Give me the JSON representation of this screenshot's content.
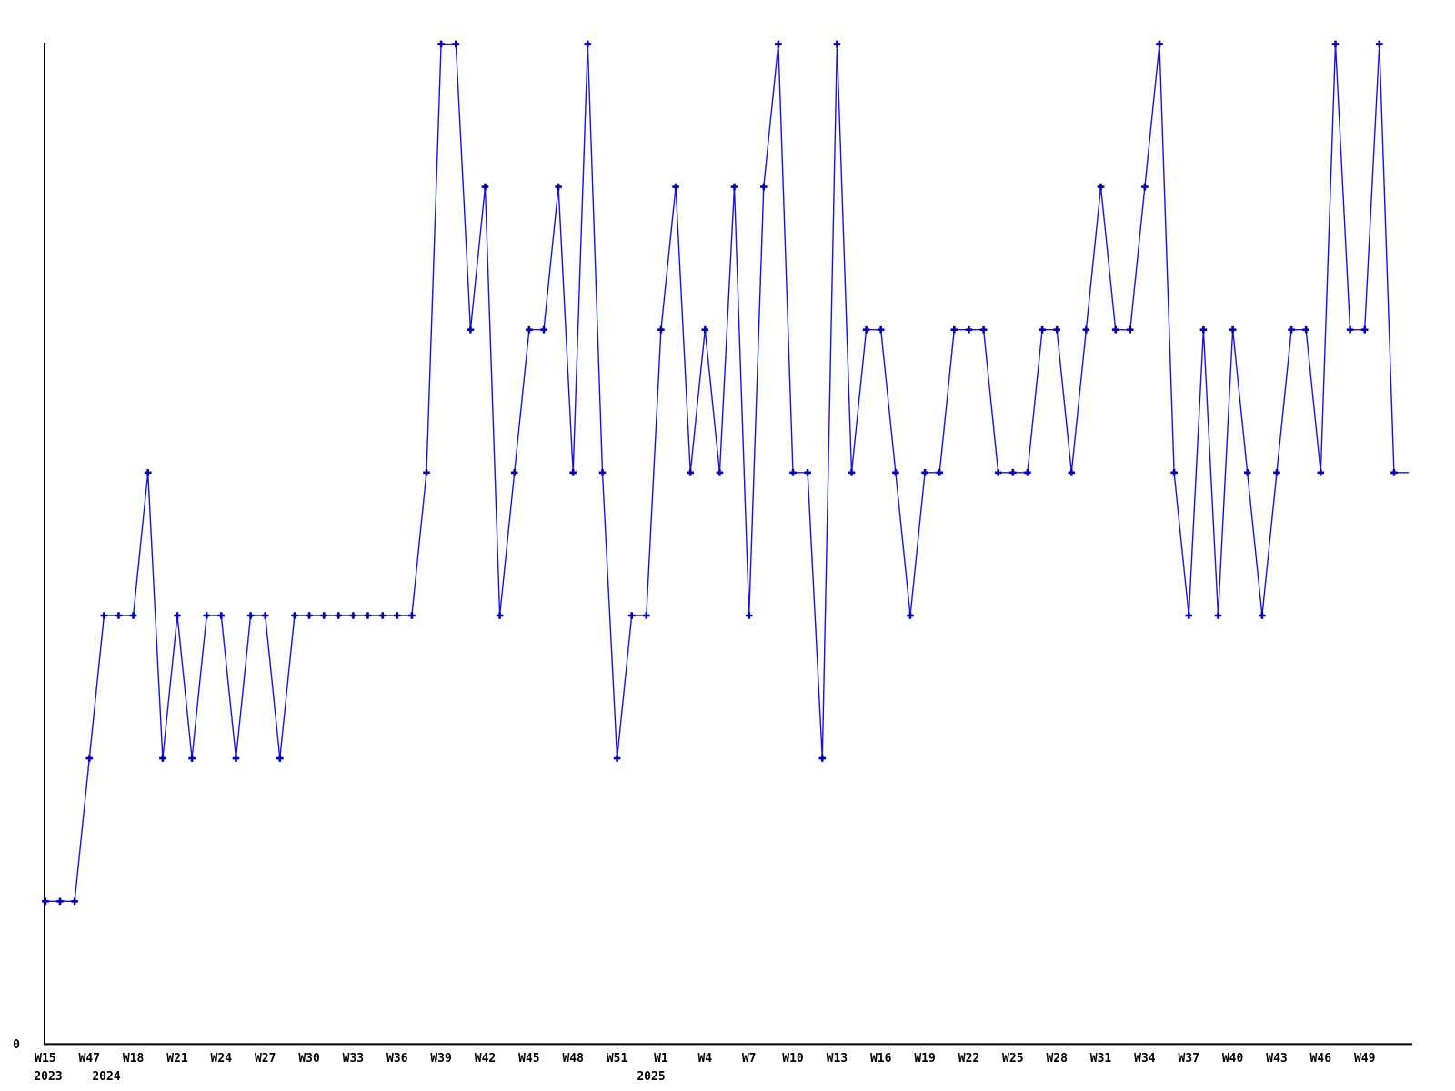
{
  "chart_data": {
    "type": "line",
    "title": "",
    "xlabel": "",
    "ylabel": "",
    "y_axis_visible_label": "0",
    "ylim": [
      0,
      7.2
    ],
    "grid": false,
    "legend": "none",
    "tick_every": 3,
    "x_tick_labels": [
      "W15",
      "W47",
      "W18",
      "W21",
      "W24",
      "W27",
      "W30",
      "W33",
      "W36",
      "W39",
      "W42",
      "W45",
      "W48",
      "W51",
      "W1",
      "W4",
      "W7",
      "W10",
      "W13",
      "W16",
      "W19",
      "W22",
      "W25",
      "W28",
      "W31",
      "W34",
      "W37",
      "W40",
      "W43",
      "W46",
      "W49"
    ],
    "year_labels": [
      {
        "text": "2023",
        "x": 53
      },
      {
        "text": "2024",
        "x": 117
      },
      {
        "text": "2025",
        "x": 716
      }
    ],
    "series": [
      {
        "name": "weekly-count",
        "values": [
          1,
          1,
          1,
          2,
          3,
          3,
          3,
          4,
          2,
          3,
          2,
          3,
          3,
          2,
          3,
          3,
          2,
          3,
          3,
          3,
          3,
          3,
          3,
          3,
          3,
          3,
          4,
          7,
          7,
          5,
          6,
          3,
          4,
          5,
          5,
          6,
          4,
          7,
          4,
          2,
          3,
          3,
          5,
          6,
          4,
          5,
          4,
          6,
          3,
          6,
          7,
          4,
          4,
          2,
          7,
          4,
          5,
          5,
          4,
          3,
          4,
          4,
          5,
          5,
          5,
          4,
          4,
          4,
          5,
          5,
          4,
          5,
          6,
          5,
          5,
          6,
          7,
          4,
          3,
          5,
          3,
          5,
          4,
          3,
          4,
          5,
          5,
          4,
          7,
          5,
          5,
          7,
          4,
          4
        ]
      }
    ],
    "colors": {
      "line": "#1414e8",
      "marker": "#0000b8",
      "axis": "#000000",
      "text": "#000000",
      "background": "#ffffff"
    },
    "marker_style": "plus",
    "last_point_has_marker": false
  }
}
